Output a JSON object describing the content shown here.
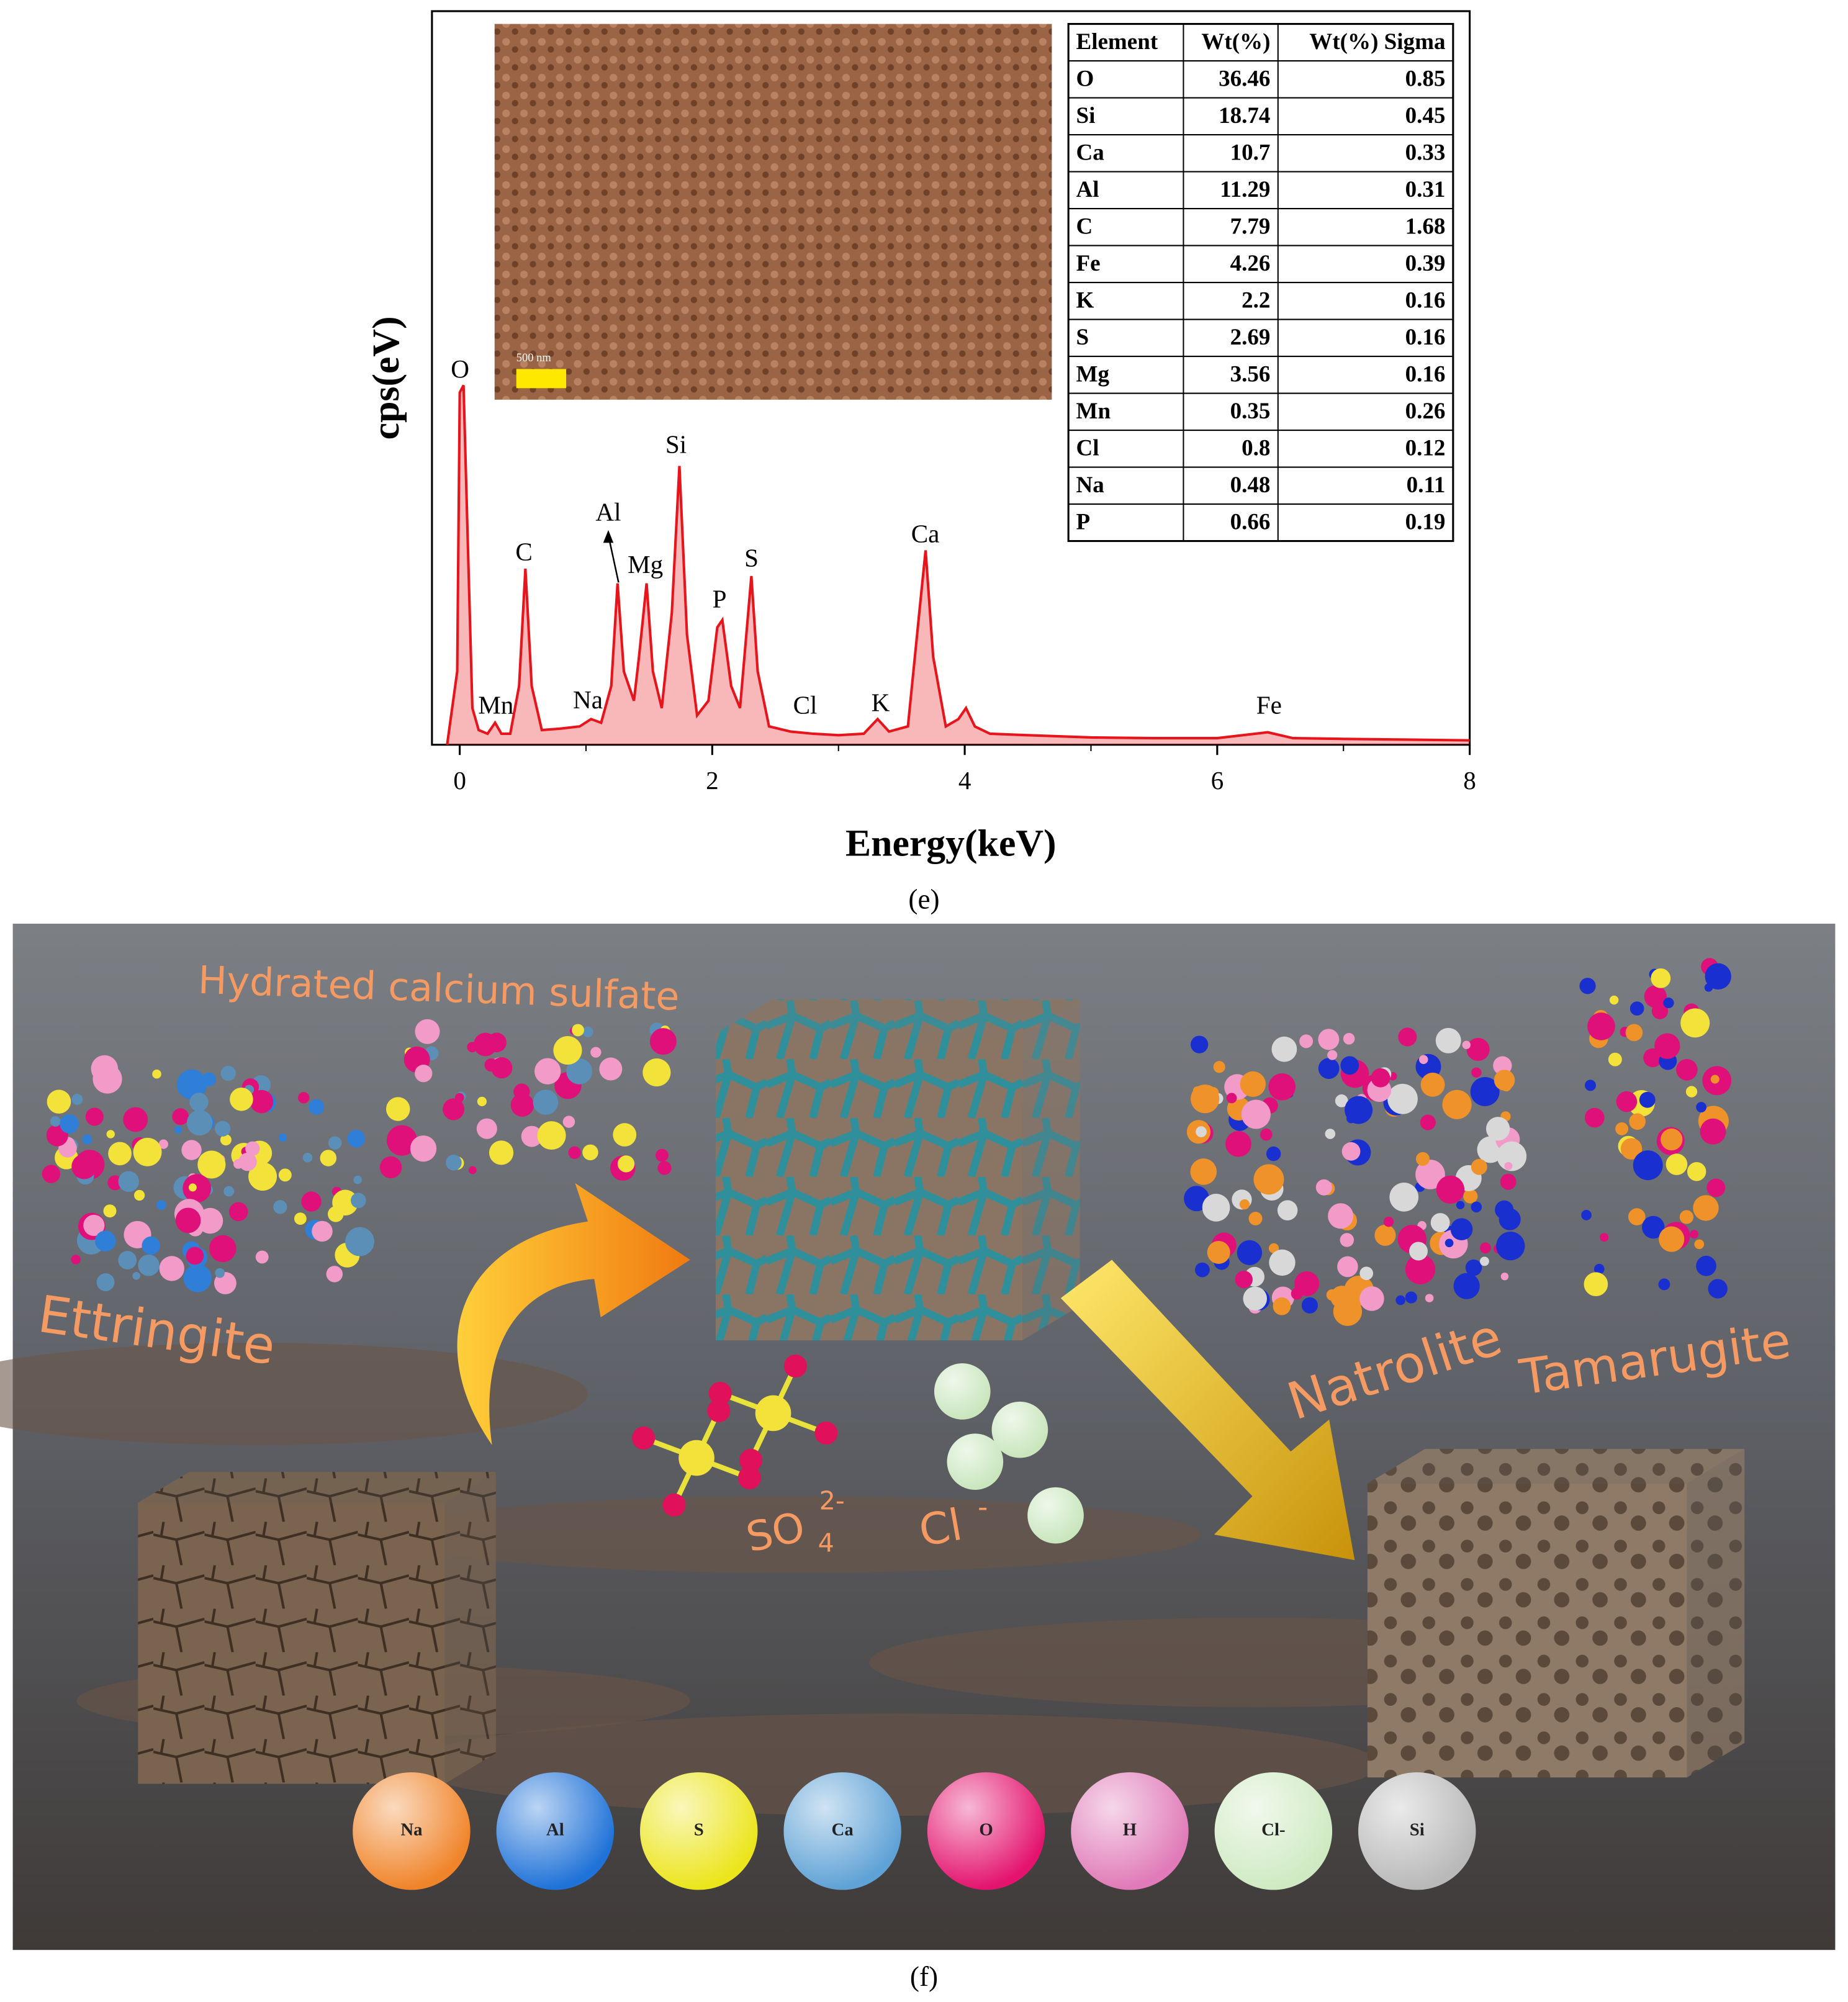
{
  "chart_data": {
    "type": "line",
    "x_label": "Energy(keV)",
    "y_label": "cps(eV)",
    "x": [
      -0.1,
      -0.02,
      0.0,
      0.03,
      0.06,
      0.1,
      0.15,
      0.22,
      0.28,
      0.33,
      0.4,
      0.47,
      0.52,
      0.57,
      0.65,
      0.8,
      0.95,
      1.04,
      1.12,
      1.2,
      1.25,
      1.3,
      1.38,
      1.42,
      1.48,
      1.53,
      1.6,
      1.68,
      1.74,
      1.8,
      1.88,
      1.97,
      2.04,
      2.08,
      2.15,
      2.22,
      2.28,
      2.31,
      2.36,
      2.45,
      2.62,
      2.8,
      3.0,
      3.2,
      3.31,
      3.4,
      3.55,
      3.64,
      3.69,
      3.75,
      3.85,
      3.95,
      4.01,
      4.08,
      4.2,
      4.5,
      5.0,
      5.5,
      6.0,
      6.4,
      6.6,
      7.0,
      7.5,
      8.0
    ],
    "values": [
      0,
      10,
      48,
      49,
      30,
      5,
      2,
      1.5,
      3,
      1.5,
      1.5,
      8,
      24,
      8,
      2,
      2.2,
      2.5,
      3.5,
      3,
      8,
      22,
      10,
      6,
      12,
      22,
      10,
      5,
      18,
      38,
      15,
      4,
      6,
      16,
      17,
      8,
      5,
      17,
      23,
      10,
      2.5,
      1.8,
      1.5,
      1.3,
      1.5,
      3.5,
      1.8,
      2.5,
      18,
      26.5,
      12,
      2.5,
      3.5,
      5,
      2.5,
      1.5,
      1.3,
      1,
      0.9,
      0.9,
      1.7,
      0.9,
      0.8,
      0.7,
      0.6
    ],
    "color": "#e8141b",
    "xlim": [
      -0.22,
      8
    ],
    "xticks": [
      0,
      2,
      4,
      6,
      8
    ],
    "ylim": [
      0,
      100
    ],
    "annotations": [
      "O",
      "Mn",
      "C",
      "Na",
      "Al",
      "Mg",
      "Si",
      "P",
      "S",
      "Cl",
      "K",
      "Ca",
      "Fe"
    ],
    "scale_bar": "500 nm"
  },
  "table": {
    "header": [
      "Element",
      "Wt(%)",
      "Wt(%) Sigma"
    ],
    "rows": [
      [
        "O",
        "36.46",
        "0.85"
      ],
      [
        "Si",
        "18.74",
        "0.45"
      ],
      [
        "Ca",
        "10.7",
        "0.33"
      ],
      [
        "Al",
        "11.29",
        "0.31"
      ],
      [
        "C",
        "7.79",
        "1.68"
      ],
      [
        "Fe",
        "4.26",
        "0.39"
      ],
      [
        "K",
        "2.2",
        "0.16"
      ],
      [
        "S",
        "2.69",
        "0.16"
      ],
      [
        "Mg",
        "3.56",
        "0.16"
      ],
      [
        "Mn",
        "0.35",
        "0.26"
      ],
      [
        "Cl",
        "0.8",
        "0.12"
      ],
      [
        "Na",
        "0.48",
        "0.11"
      ],
      [
        "P",
        "0.66",
        "0.19"
      ]
    ]
  },
  "panel_labels": [
    "(e)",
    "(f)"
  ],
  "illustration": {
    "labels": [
      "Hydrated calcium sulfate",
      "Ettringite",
      "Natrolite",
      "Tamarugite",
      "SO",
      "4",
      "2-",
      "Cl",
      "-"
    ],
    "atoms": [
      "Na",
      "Al",
      "S",
      "Ca",
      "O",
      "H",
      "Cl-",
      "Si"
    ]
  }
}
